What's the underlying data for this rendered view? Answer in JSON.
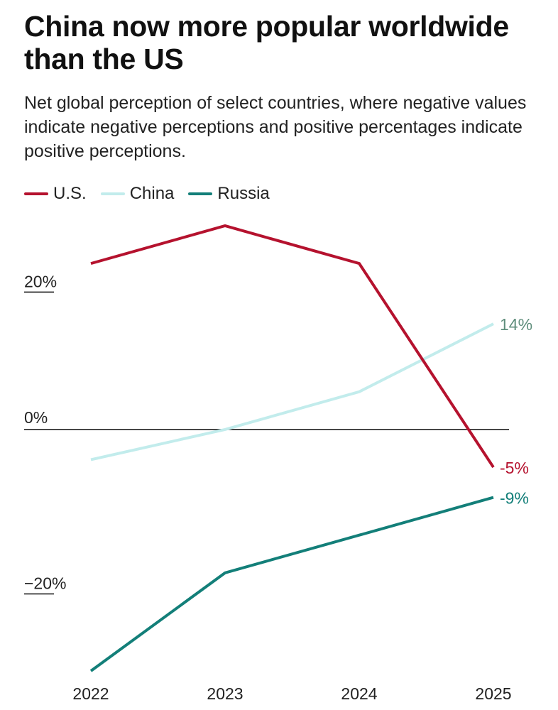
{
  "chart_data": {
    "type": "line",
    "title": "China now more popular worldwide than the US",
    "subtitle": "Net global perception of select countries, where negative values indicate negative perceptions and positive percentages indicate positive perceptions.",
    "x": [
      "2022",
      "2023",
      "2024",
      "2025"
    ],
    "y_ticks": [
      {
        "value": 20,
        "label": "20%"
      },
      {
        "value": 0,
        "label": "0%"
      },
      {
        "value": -20,
        "label": "−20%"
      }
    ],
    "ylim": [
      -32,
      27
    ],
    "xlabel": "",
    "ylabel": "",
    "grid": false,
    "legend_position": "top-left",
    "series": [
      {
        "name": "U.S.",
        "color": "#b5122e",
        "values": [
          22,
          27,
          22,
          -5
        ],
        "end_label": "-5%"
      },
      {
        "name": "China",
        "color": "#c2ecec",
        "label_color": "#5f8e7c",
        "values": [
          -4,
          0,
          5,
          14
        ],
        "end_label": "14%"
      },
      {
        "name": "Russia",
        "color": "#137f79",
        "values": [
          -32,
          -19,
          -14,
          -9
        ],
        "end_label": "-9%"
      }
    ]
  }
}
